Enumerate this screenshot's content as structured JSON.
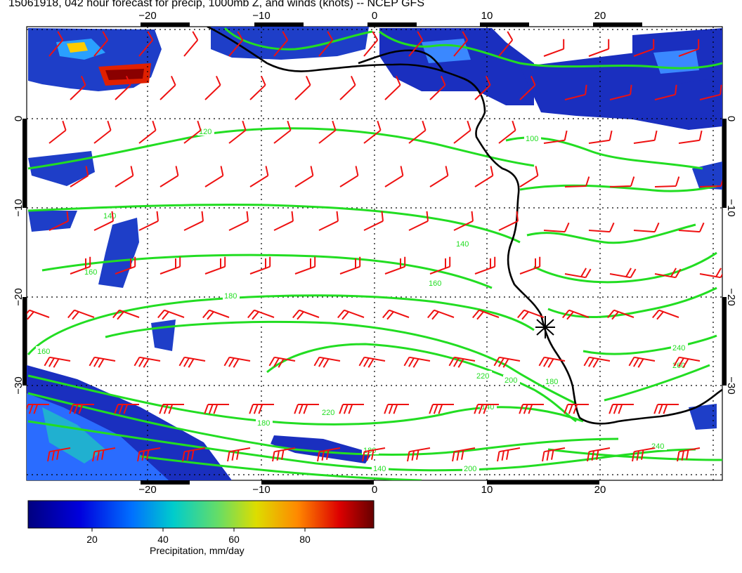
{
  "title": "15061918, 042 hour forecast for precip, 1000mb Z, and winds (knots) -- NCEP GFS",
  "map": {
    "lon_range": [
      -31,
      30
    ],
    "lat_range": [
      -40,
      10
    ],
    "lon_ticks": [
      "−20",
      "−10",
      "0",
      "10",
      "20"
    ],
    "lat_ticks": [
      "0",
      "−10",
      "−20",
      "−30"
    ],
    "contour_color": "#22dd22",
    "barb_color": "#ee1111",
    "coast_color": "#000000",
    "contour_labels": [
      "120",
      "140",
      "160",
      "180",
      "200",
      "220",
      "240",
      "260",
      "100"
    ]
  },
  "colorbar": {
    "label": "Precipitation, mm/day",
    "ticks": [
      "20",
      "40",
      "60",
      "80"
    ],
    "range": [
      0,
      98
    ]
  }
}
